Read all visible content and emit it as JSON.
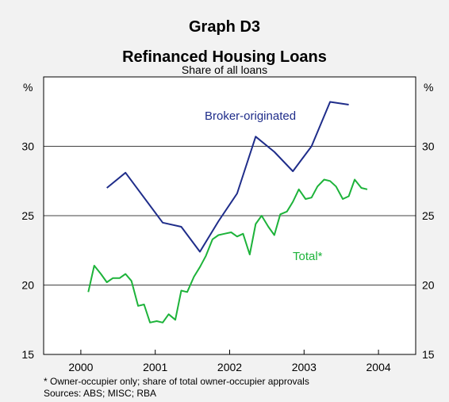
{
  "chart_data": {
    "type": "line",
    "title": "Graph D3",
    "subtitle": "Refinanced Housing Loans",
    "subsubtitle": "Share of all loans",
    "ylabel_left": "%",
    "ylabel_right": "%",
    "ylim": [
      15,
      35
    ],
    "yticks": [
      15,
      20,
      25,
      30
    ],
    "xlim": [
      1999.5,
      2004.5
    ],
    "xticks": [
      2000,
      2001,
      2002,
      2003,
      2004
    ],
    "grid": true,
    "series": [
      {
        "name": "Broker-originated",
        "color": "#1f2d8a",
        "x": [
          2000.35,
          2000.6,
          2001.1,
          2001.35,
          2001.6,
          2001.85,
          2002.1,
          2002.35,
          2002.6,
          2002.85,
          2003.1,
          2003.35,
          2003.6
        ],
        "y": [
          27.0,
          28.1,
          24.5,
          24.2,
          22.4,
          24.6,
          26.6,
          30.7,
          29.6,
          28.2,
          30.0,
          33.2,
          33.0
        ]
      },
      {
        "name": "Total*",
        "color": "#1db33a",
        "x": [
          2000.1,
          2000.18,
          2000.27,
          2000.35,
          2000.43,
          2000.52,
          2000.6,
          2000.68,
          2000.77,
          2000.85,
          2000.93,
          2001.02,
          2001.1,
          2001.18,
          2001.27,
          2001.35,
          2001.43,
          2001.52,
          2001.6,
          2001.68,
          2001.77,
          2001.85,
          2001.93,
          2002.02,
          2002.1,
          2002.18,
          2002.27,
          2002.35,
          2002.43,
          2002.52,
          2002.6,
          2002.68,
          2002.77,
          2002.85,
          2002.93,
          2003.02,
          2003.1,
          2003.18,
          2003.27,
          2003.35,
          2003.43,
          2003.52,
          2003.6,
          2003.68,
          2003.77,
          2003.85
        ],
        "y": [
          19.5,
          21.4,
          20.8,
          20.2,
          20.5,
          20.5,
          20.8,
          20.3,
          18.5,
          18.6,
          17.3,
          17.4,
          17.3,
          17.9,
          17.5,
          19.6,
          19.5,
          20.6,
          21.3,
          22.1,
          23.3,
          23.6,
          23.7,
          23.8,
          23.5,
          23.7,
          22.2,
          24.4,
          25.0,
          24.2,
          23.6,
          25.1,
          25.3,
          26.0,
          26.9,
          26.2,
          26.3,
          27.1,
          27.6,
          27.5,
          27.1,
          26.2,
          26.4,
          27.6,
          27.0,
          26.9
        ]
      }
    ],
    "annotations": [
      {
        "text": "Broker-originated",
        "series": 0
      },
      {
        "text": "Total*",
        "series": 1
      }
    ],
    "footnote": "* Owner-occupier only; share of total owner-occupier approvals",
    "sources": "Sources: ABS; MISC; RBA"
  }
}
